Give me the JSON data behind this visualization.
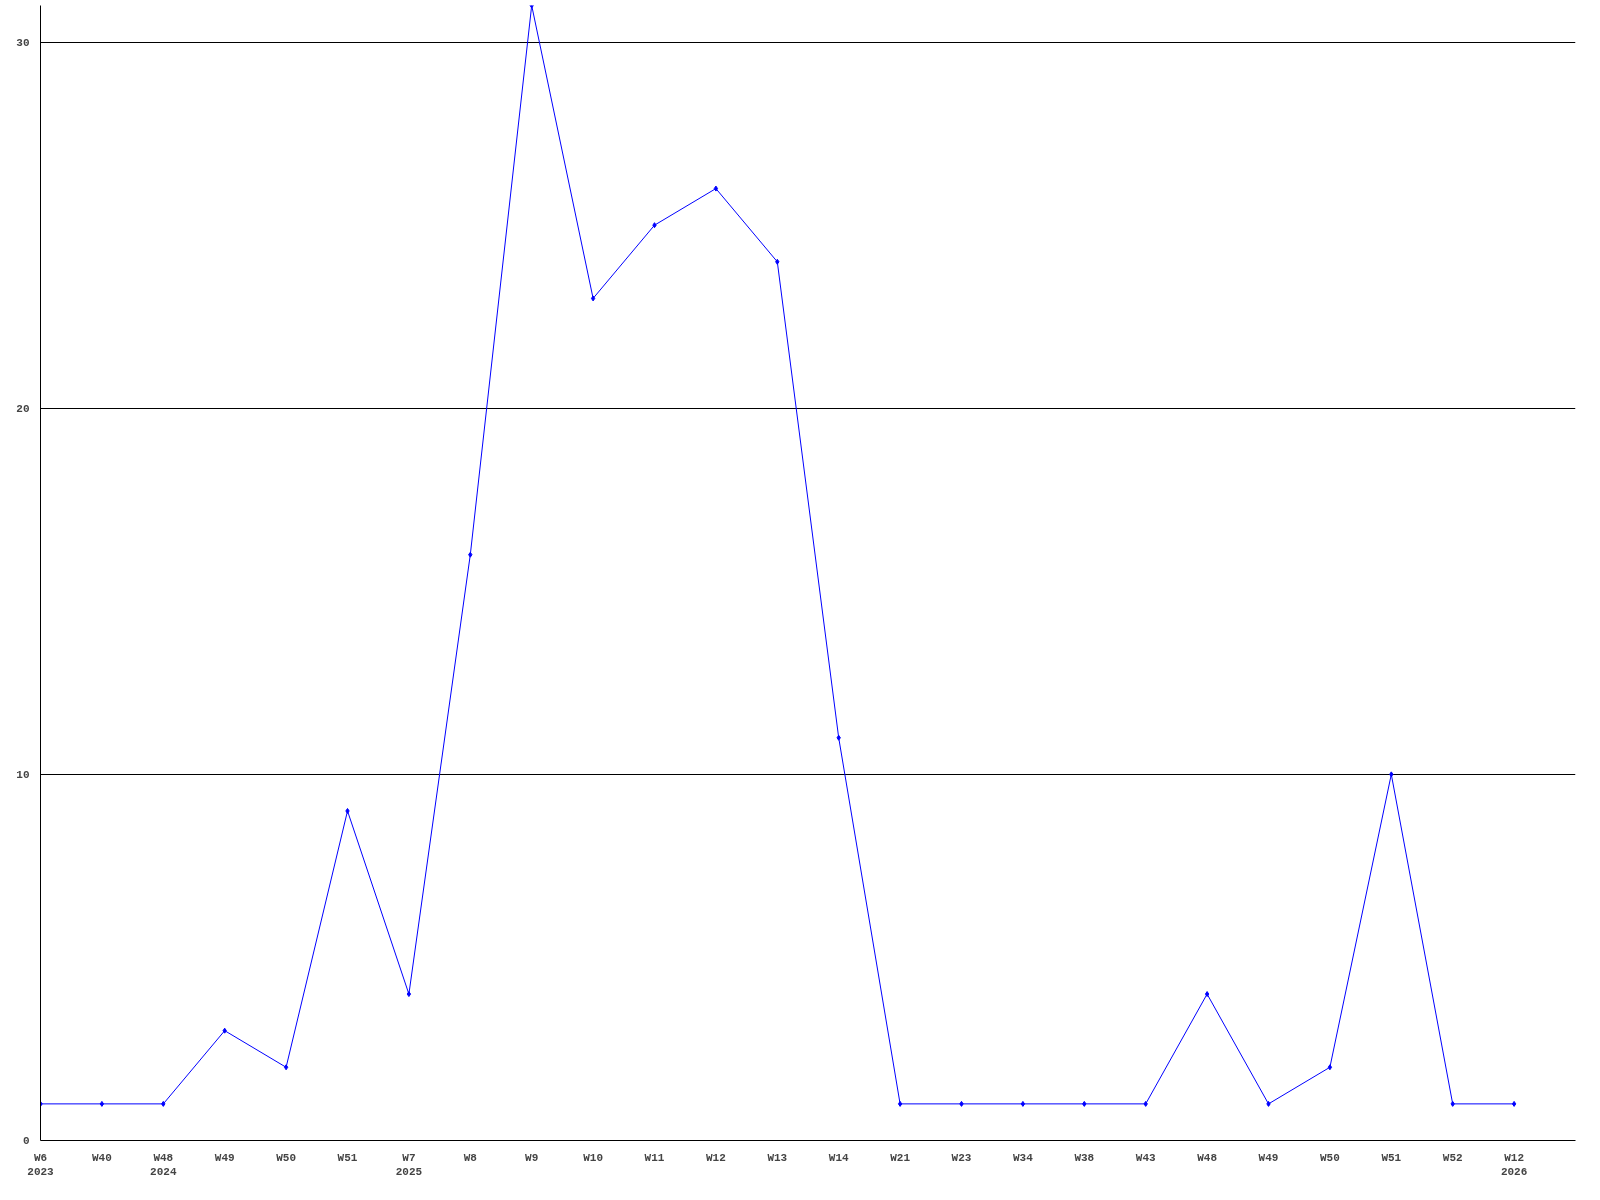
{
  "chart_data": {
    "type": "line",
    "categories": [
      "W6\n2023",
      "W40",
      "W48\n2024",
      "W49",
      "W50",
      "W51",
      "W7\n2025",
      "W8",
      "W9",
      "W10",
      "W11",
      "W12",
      "W13",
      "W14",
      "W21",
      "W23",
      "W34",
      "W38",
      "W43",
      "W48",
      "W49",
      "W50",
      "W51",
      "W52",
      "W12\n2026"
    ],
    "series": [
      {
        "color": "#0000ff",
        "values": [
          1,
          1,
          1,
          3,
          2,
          9,
          4,
          16,
          31,
          23,
          25,
          26,
          24,
          11,
          1,
          1,
          1,
          1,
          1,
          4,
          1,
          2,
          10,
          1,
          1
        ]
      }
    ],
    "ylim": [
      0,
      31
    ],
    "yticks": [
      0,
      10,
      20,
      30
    ],
    "grid": "y",
    "marker": "diamond",
    "line_style": "solid"
  }
}
